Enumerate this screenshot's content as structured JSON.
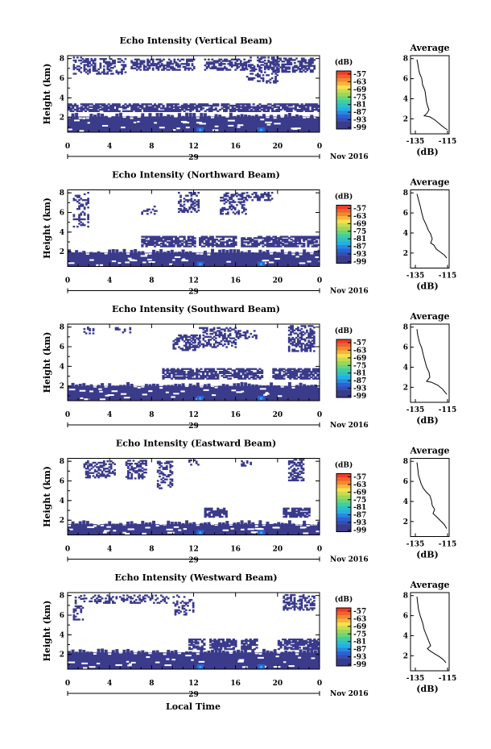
{
  "chart_data": {
    "type": "heatmap",
    "x_axis": {
      "ticks": [
        "0",
        "4",
        "8",
        "12",
        "16",
        "20",
        "0"
      ],
      "day": "29",
      "month_year": "Nov 2016",
      "label": "Local Time",
      "range_hours": [
        0,
        24
      ]
    },
    "y_axis": {
      "label": "Height (km)",
      "ticks": [
        "2",
        "4",
        "6",
        "8"
      ],
      "range_km": [
        0.5,
        8.3
      ]
    },
    "colorbar": {
      "unit": "(dB)",
      "levels": [
        "-57",
        "-63",
        "-69",
        "-75",
        "-81",
        "-87",
        "-93",
        "-99"
      ],
      "colors": [
        "#ee3b2a",
        "#f3892e",
        "#f6e04c",
        "#9ad858",
        "#3ecfa0",
        "#24b0e6",
        "#2c62d6",
        "#3b3b8c"
      ]
    },
    "profile": {
      "title": "Average",
      "xlabel": "(dB)",
      "xticks": [
        "-135",
        "-115"
      ],
      "yticks": [
        "2",
        "4",
        "6",
        "8"
      ]
    },
    "panels": [
      {
        "title": "Echo Intensity (Vertical Beam)",
        "low_layer_top_km": 2.1,
        "mid_layer_km": [
          2.6,
          3.4
        ],
        "mid_layer_segments_h": [
          [
            0,
            24
          ]
        ],
        "upper_patches": [
          [
            0.5,
            1.5,
            6.4,
            8.1,
            0.35
          ],
          [
            1.5,
            5.5,
            6.4,
            8.0,
            0.5
          ],
          [
            6,
            12,
            6.8,
            8.0,
            0.55
          ],
          [
            13,
            17,
            6.8,
            8.0,
            0.55
          ],
          [
            17,
            20,
            5.5,
            8.1,
            0.4
          ],
          [
            19.5,
            23.5,
            6.6,
            8.0,
            0.6
          ]
        ],
        "average_profile": [
          [
            -134,
            7.9
          ],
          [
            -133.5,
            7.5
          ],
          [
            -133,
            7.0
          ],
          [
            -132.5,
            6.6
          ],
          [
            -131,
            6.0
          ],
          [
            -130.5,
            5.4
          ],
          [
            -129,
            4.8
          ],
          [
            -128.5,
            4.2
          ],
          [
            -128,
            3.6
          ],
          [
            -127,
            3.1
          ],
          [
            -126.5,
            2.9
          ],
          [
            -128,
            2.5
          ],
          [
            -129.5,
            2.3
          ],
          [
            -126,
            2.2
          ],
          [
            -123,
            1.9
          ],
          [
            -120,
            1.5
          ],
          [
            -117,
            1.1
          ],
          [
            -115,
            0.9
          ]
        ]
      },
      {
        "title": "Echo Intensity (Northward Beam)",
        "low_layer_top_km": 1.9,
        "mid_layer_km": [
          2.5,
          3.6
        ],
        "mid_layer_segments_h": [
          [
            7,
            12
          ],
          [
            12.5,
            16
          ],
          [
            16.5,
            20
          ],
          [
            20,
            24
          ]
        ],
        "upper_patches": [
          [
            0.5,
            2,
            4.5,
            8.0,
            0.3
          ],
          [
            7,
            8.5,
            5.8,
            6.6,
            0.3
          ],
          [
            10.5,
            12.5,
            6.0,
            8.0,
            0.45
          ],
          [
            14.5,
            17,
            5.8,
            8.0,
            0.5
          ],
          [
            17,
            19.5,
            7.2,
            8.1,
            0.45
          ]
        ],
        "average_profile": [
          [
            -134,
            7.9
          ],
          [
            -133,
            7.3
          ],
          [
            -132,
            6.7
          ],
          [
            -131,
            6.0
          ],
          [
            -130,
            5.4
          ],
          [
            -128.5,
            4.9
          ],
          [
            -127,
            4.3
          ],
          [
            -125.5,
            3.9
          ],
          [
            -124.5,
            3.4
          ],
          [
            -125.5,
            3.0
          ],
          [
            -123.5,
            2.8
          ],
          [
            -122,
            2.4
          ],
          [
            -119.5,
            2.1
          ],
          [
            -117,
            1.8
          ],
          [
            -115.5,
            1.5
          ]
        ]
      },
      {
        "title": "Echo Intensity (Southward Beam)",
        "low_layer_top_km": 2.0,
        "mid_layer_km": [
          2.7,
          3.8
        ],
        "mid_layer_segments_h": [
          [
            9,
            18.5
          ],
          [
            19.5,
            24
          ]
        ],
        "upper_patches": [
          [
            1.5,
            2.5,
            7.3,
            8.0,
            0.3
          ],
          [
            4.5,
            6,
            7.4,
            8.0,
            0.3
          ],
          [
            10,
            12.5,
            5.6,
            7.2,
            0.5
          ],
          [
            12.5,
            16,
            5.9,
            8.0,
            0.45
          ],
          [
            16,
            18,
            6.8,
            7.6,
            0.4
          ],
          [
            21,
            23.5,
            5.5,
            8.1,
            0.55
          ]
        ],
        "average_profile": [
          [
            -134,
            7.8
          ],
          [
            -133.5,
            7.2
          ],
          [
            -132.5,
            6.5
          ],
          [
            -131,
            5.9
          ],
          [
            -130,
            5.2
          ],
          [
            -129,
            4.6
          ],
          [
            -128,
            4.0
          ],
          [
            -126.5,
            3.5
          ],
          [
            -126,
            3.0
          ],
          [
            -128,
            2.6
          ],
          [
            -125,
            2.5
          ],
          [
            -121,
            2.2
          ],
          [
            -118,
            1.8
          ],
          [
            -115.5,
            1.3
          ]
        ]
      },
      {
        "title": "Echo Intensity (Eastward Beam)",
        "low_layer_top_km": 1.6,
        "mid_layer_km": [
          2.3,
          3.2
        ],
        "mid_layer_segments_h": [
          [
            13,
            15
          ],
          [
            20.5,
            23
          ]
        ],
        "upper_patches": [
          [
            1.5,
            4.5,
            6.3,
            8.1,
            0.45
          ],
          [
            5.5,
            7.5,
            6.2,
            8.1,
            0.45
          ],
          [
            8.5,
            10,
            5.2,
            8.0,
            0.4
          ],
          [
            11.5,
            12.5,
            7.6,
            8.1,
            0.3
          ],
          [
            16.5,
            17.5,
            7.5,
            8.1,
            0.3
          ],
          [
            21,
            22.5,
            6.0,
            8.2,
            0.5
          ]
        ],
        "average_profile": [
          [
            -134,
            7.9
          ],
          [
            -133.5,
            7.3
          ],
          [
            -133,
            6.6
          ],
          [
            -131.5,
            5.8
          ],
          [
            -130,
            5.3
          ],
          [
            -128,
            4.9
          ],
          [
            -126,
            4.6
          ],
          [
            -125,
            4.1
          ],
          [
            -124.5,
            3.6
          ],
          [
            -123,
            3.2
          ],
          [
            -124,
            2.8
          ],
          [
            -122,
            2.5
          ],
          [
            -119.5,
            2.1
          ],
          [
            -117,
            1.7
          ],
          [
            -115.5,
            1.3
          ]
        ]
      },
      {
        "title": "Echo Intensity (Westward Beam)",
        "low_layer_top_km": 2.2,
        "mid_layer_km": [
          2.5,
          3.6
        ],
        "mid_layer_segments_h": [
          [
            11.5,
            13
          ],
          [
            13.5,
            16
          ],
          [
            16.5,
            18
          ],
          [
            20,
            24
          ]
        ],
        "upper_patches": [
          [
            0.5,
            1.5,
            5.5,
            8.0,
            0.35
          ],
          [
            1.5,
            9.5,
            7.2,
            8.1,
            0.35
          ],
          [
            10,
            12,
            6.0,
            8.0,
            0.3
          ],
          [
            20.5,
            23.5,
            6.5,
            8.1,
            0.55
          ]
        ],
        "average_profile": [
          [
            -134,
            7.9
          ],
          [
            -133.5,
            7.2
          ],
          [
            -133,
            6.6
          ],
          [
            -132,
            6.0
          ],
          [
            -130.5,
            5.3
          ],
          [
            -129.5,
            4.6
          ],
          [
            -128,
            4.0
          ],
          [
            -126.5,
            3.4
          ],
          [
            -125.5,
            3.0
          ],
          [
            -127.5,
            2.7
          ],
          [
            -126,
            2.5
          ],
          [
            -123,
            2.2
          ],
          [
            -120,
            1.9
          ],
          [
            -117.5,
            1.6
          ],
          [
            -116,
            1.3
          ]
        ]
      }
    ]
  }
}
